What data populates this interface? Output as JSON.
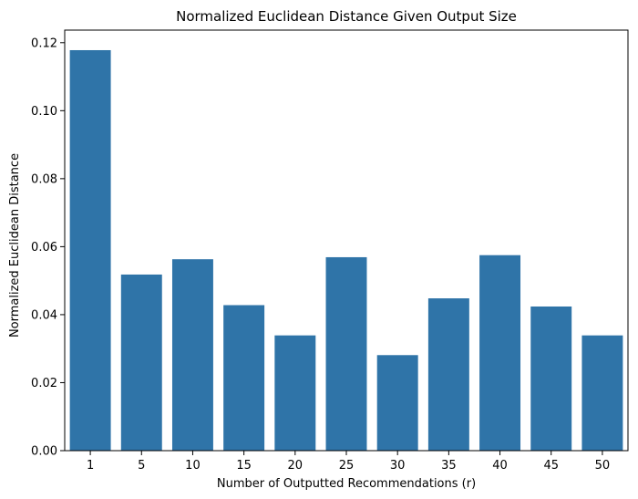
{
  "chart_data": {
    "type": "bar",
    "title": "Normalized Euclidean Distance Given Output Size",
    "xlabel": "Number of Outputted Recommendations (r)",
    "ylabel": "Normalized Euclidean Distance",
    "categories": [
      "1",
      "5",
      "10",
      "15",
      "20",
      "25",
      "30",
      "35",
      "40",
      "45",
      "50"
    ],
    "values": [
      0.1178,
      0.0518,
      0.0563,
      0.0428,
      0.0339,
      0.0569,
      0.0281,
      0.0448,
      0.0575,
      0.0424,
      0.0339
    ],
    "ylim": [
      0,
      0.1237
    ],
    "yticks": [
      "0.00",
      "0.02",
      "0.04",
      "0.06",
      "0.08",
      "0.10",
      "0.12"
    ],
    "bar_color": "#2f74a8",
    "grid": false,
    "legend": "none"
  }
}
